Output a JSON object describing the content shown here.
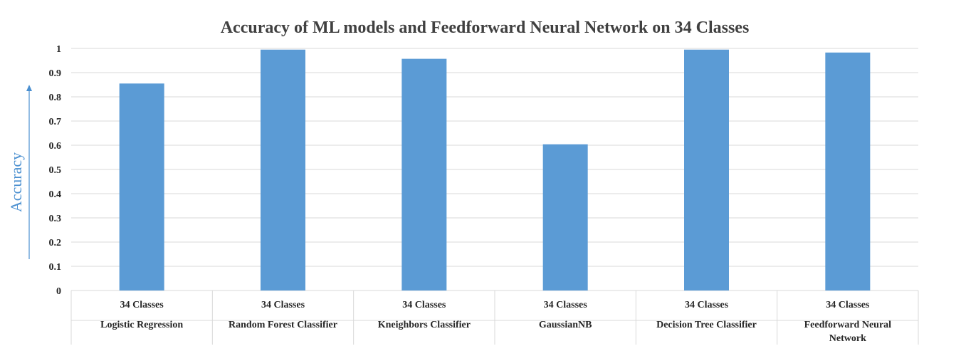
{
  "chart_data": {
    "type": "bar",
    "title": "Accuracy of ML models and Feedforward Neural Network on 34 Classes",
    "xlabel": "",
    "ylabel": "Accuracy",
    "ylim": [
      0,
      1
    ],
    "yticks": [
      "0",
      "0.1",
      "0.2",
      "0.3",
      "0.4",
      "0.5",
      "0.6",
      "0.7",
      "0.8",
      "0.9",
      "1"
    ],
    "grid": true,
    "legend": "none",
    "group_label": "34 Classes",
    "categories": [
      "Logistic Regression",
      "Random Forest Classifier",
      "Kneighbors Classifier",
      "GaussianNB",
      "Decision Tree Classifier",
      "Feedforward Neural Network"
    ],
    "values": [
      0.855,
      0.995,
      0.957,
      0.604,
      0.995,
      0.983
    ],
    "colors": {
      "bar": "#5b9bd5",
      "grid": "#d9d9d9",
      "axis_label": "#4a8fd0"
    }
  }
}
